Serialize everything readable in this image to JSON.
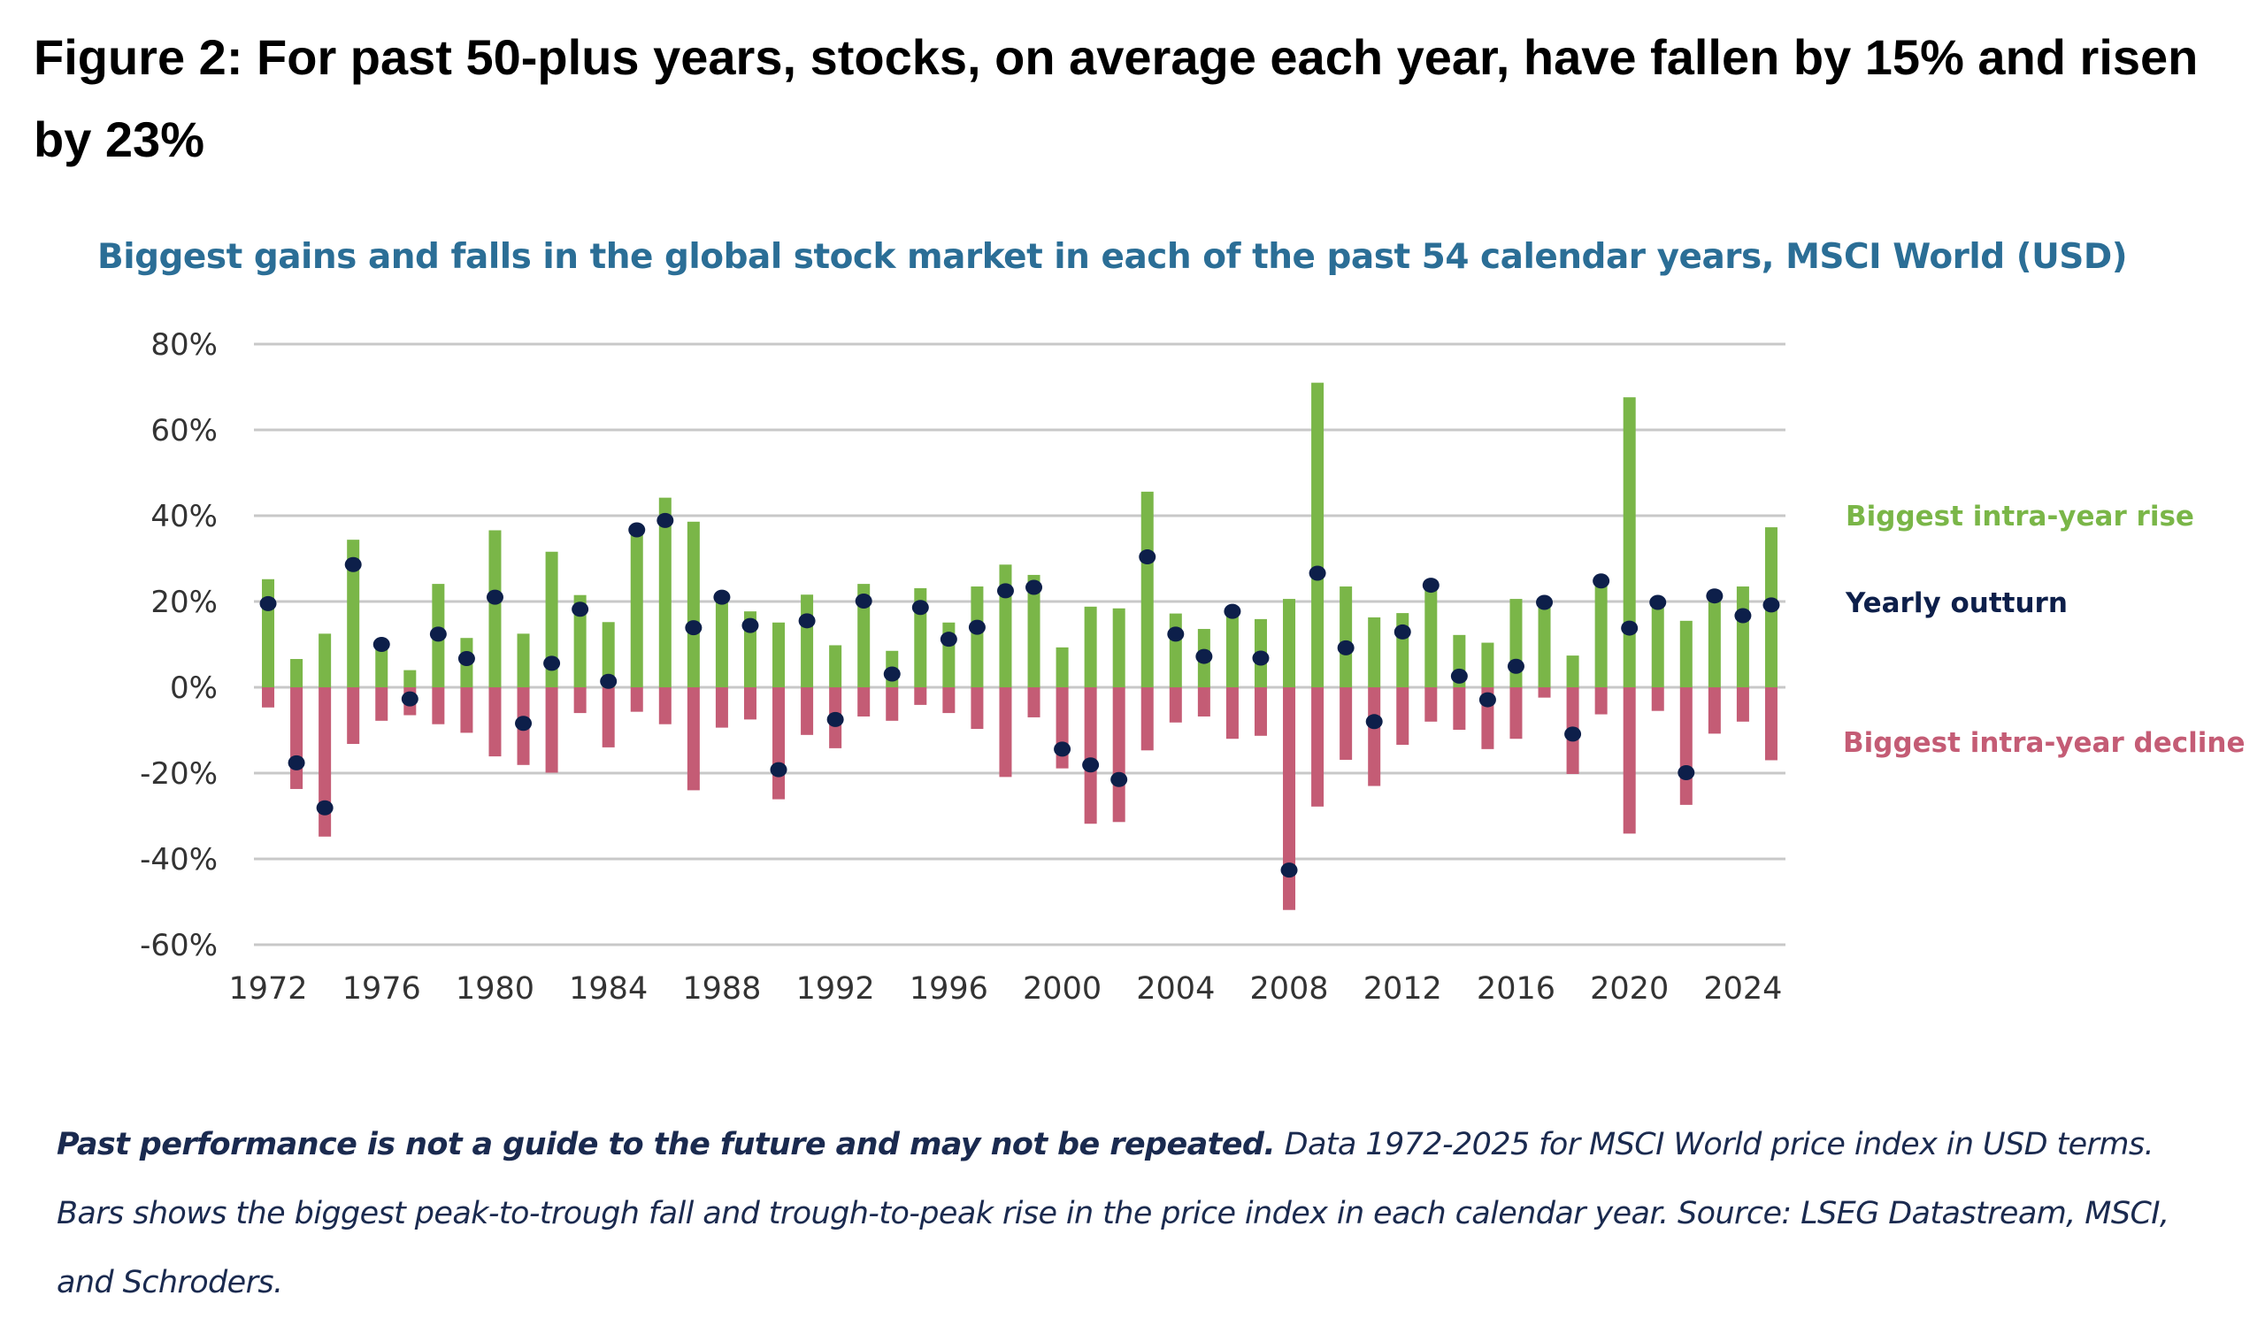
{
  "figure": {
    "title": "Figure 2: For past 50-plus years, stocks, on average each year, have fallen by 15% and risen by 23%"
  },
  "footnote": {
    "bold": "Past performance is not a guide to the future and may not be repeated.",
    "text": " Data 1972-2025 for MSCI World price index in USD terms. Bars shows the biggest peak-to-trough fall and trough-to-peak rise in the price index in each calendar year. Source: LSEG Datastream, MSCI, and Schroders."
  },
  "colors": {
    "rise": "#7ab648",
    "decline": "#c45c75",
    "outturn": "#0d1f4a",
    "subtitle": "#2b6e96",
    "grid": "#c8c8c8",
    "axis_text": "#333333"
  },
  "chart_data": {
    "type": "bar",
    "title": "Biggest gains and falls in the global stock market in each of the past 54 calendar years, MSCI World (USD)",
    "xlabel": "",
    "ylabel": "",
    "ylim": [
      -60,
      80
    ],
    "yticks": [
      80,
      60,
      40,
      20,
      0,
      -20,
      -40,
      -60
    ],
    "ytick_labels": [
      "80%",
      "60%",
      "40%",
      "20%",
      "0%",
      "-20%",
      "-40%",
      "-60%"
    ],
    "xtick_labels": [
      "1972",
      "1976",
      "1980",
      "1984",
      "1988",
      "1992",
      "1996",
      "2000",
      "2004",
      "2008",
      "2012",
      "2016",
      "2020",
      "2024"
    ],
    "grid": true,
    "legend_position": "right",
    "years": [
      1972,
      1973,
      1974,
      1975,
      1976,
      1977,
      1978,
      1979,
      1980,
      1981,
      1982,
      1983,
      1984,
      1985,
      1986,
      1987,
      1988,
      1989,
      1990,
      1991,
      1992,
      1993,
      1994,
      1995,
      1996,
      1997,
      1998,
      1999,
      2000,
      2001,
      2002,
      2003,
      2004,
      2005,
      2006,
      2007,
      2008,
      2009,
      2010,
      2011,
      2012,
      2013,
      2014,
      2015,
      2016,
      2017,
      2018,
      2019,
      2020,
      2021,
      2022,
      2023,
      2024,
      2025
    ],
    "series": [
      {
        "name": "Biggest intra-year rise",
        "type": "bar",
        "values": [
          25.2,
          6.6,
          12.5,
          34.4,
          9.5,
          4.0,
          24.1,
          11.5,
          36.6,
          12.5,
          31.6,
          21.5,
          15.2,
          36.8,
          44.2,
          38.6,
          20.8,
          17.7,
          15.1,
          21.6,
          9.8,
          24.1,
          8.5,
          23.1,
          15.1,
          23.5,
          28.6,
          26.2,
          9.3,
          18.8,
          18.4,
          45.6,
          17.2,
          13.6,
          17.7,
          15.9,
          20.6,
          71.0,
          23.5,
          16.3,
          17.3,
          23.7,
          12.2,
          10.4,
          20.6,
          19.8,
          7.4,
          24.9,
          67.6,
          19.8,
          15.5,
          21.3,
          23.5,
          37.3
        ]
      },
      {
        "name": "Yearly outturn",
        "type": "scatter",
        "values": [
          19.5,
          -17.6,
          -28.1,
          28.6,
          10.0,
          -2.7,
          12.4,
          6.7,
          21.0,
          -8.4,
          5.6,
          18.2,
          1.4,
          36.7,
          38.9,
          13.9,
          21.0,
          14.4,
          -19.2,
          15.5,
          -7.5,
          20.1,
          3.1,
          18.6,
          11.2,
          14.0,
          22.5,
          23.3,
          -14.4,
          -18.1,
          -21.5,
          30.4,
          12.4,
          7.2,
          17.7,
          6.8,
          -42.6,
          26.6,
          9.2,
          -8.0,
          12.9,
          23.8,
          2.6,
          -2.9,
          4.9,
          19.8,
          -10.9,
          24.8,
          13.8,
          19.8,
          -19.9,
          21.3,
          16.7,
          19.2
        ]
      },
      {
        "name": "Biggest intra-year decline",
        "type": "bar",
        "values": [
          -4.7,
          -23.7,
          -34.8,
          -13.2,
          -7.8,
          -6.5,
          -8.6,
          -10.6,
          -16.1,
          -18.1,
          -19.9,
          -6.0,
          -14.0,
          -5.7,
          -8.6,
          -24.0,
          -9.4,
          -7.5,
          -26.1,
          -11.1,
          -14.2,
          -6.8,
          -7.8,
          -4.1,
          -6.0,
          -9.7,
          -20.9,
          -7.0,
          -18.9,
          -31.8,
          -31.4,
          -14.7,
          -8.2,
          -6.8,
          -12.0,
          -11.3,
          -51.9,
          -27.8,
          -16.9,
          -23.0,
          -13.4,
          -8.0,
          -9.9,
          -14.4,
          -12.0,
          -2.4,
          -20.2,
          -6.3,
          -34.1,
          -5.5,
          -27.4,
          -10.8,
          -8.0,
          -17.0
        ]
      }
    ]
  }
}
